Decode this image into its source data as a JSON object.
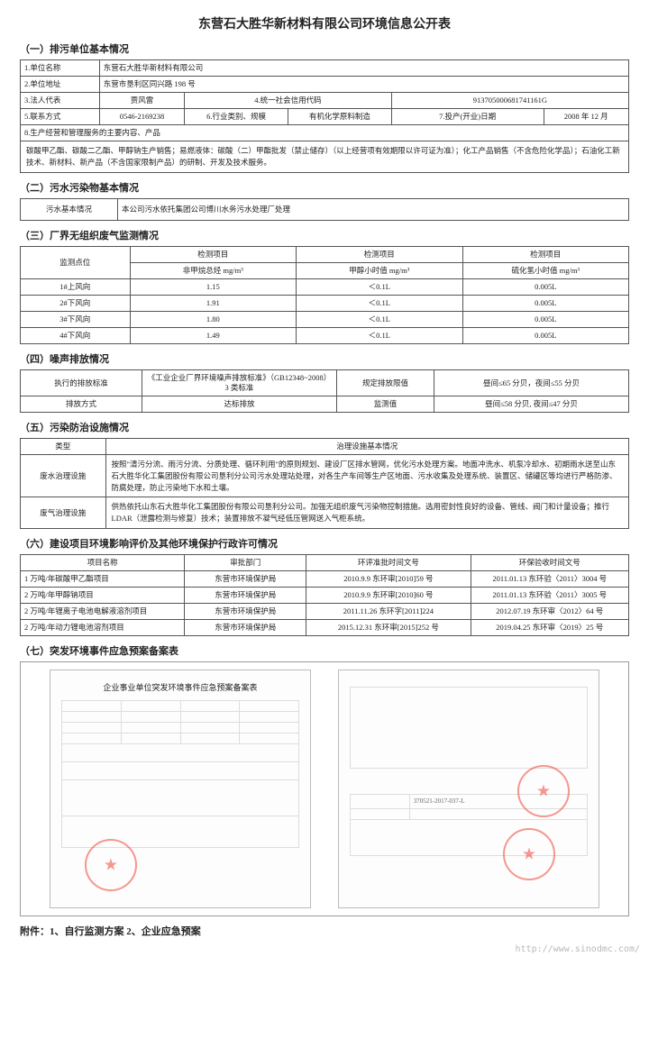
{
  "doc_title": "东营石大胜华新材料有限公司环境信息公开表",
  "s1": {
    "title": "（一）排污单位基本情况",
    "rows": {
      "l1": "1.单位名称",
      "v1": "东营石大胜华新材料有限公司",
      "l2": "2.单位地址",
      "v2": "东营市垦利区同兴路 198 号",
      "l3": "3.法人代表",
      "v3": "贾风雷",
      "l4": "4.统一社会信用代码",
      "v4": "913705000681741161G",
      "l5": "5.联系方式",
      "v5": "0546-2169238",
      "l6": "6.行业类别、规模",
      "v6": "有机化学原料制造",
      "l7": "7.投产(开业)日期",
      "v7": "2008 年 12 月",
      "l8": "8.生产经营和管理服务的主要内容、产品",
      "note": "碳酸甲乙酯、碳酸二乙酯、甲醇钠生产销售；易燃液体：碳酸（二）甲酯批发（禁止储存）（以上经营项有效期限以许可证为准）；化工产品销售（不含危险化学品）；石油化工新技术、新材料、新产品（不含国家限制产品）的研制、开发及技术服务。"
    }
  },
  "s2": {
    "title": "（二）污水污染物基本情况",
    "l": "污水基本情况",
    "v": "本公司污水依托集团公司博川水务污水处理厂处理"
  },
  "s3": {
    "title": "（三）厂界无组织废气监测情况",
    "h_point": "监测点位",
    "h_item": "检测项目",
    "u1": "非甲烷总烃 mg/m³",
    "u2": "甲醇小时值 mg/m³",
    "u3": "硫化氢小时值 mg/m³",
    "rows": [
      {
        "p": "1#上风向",
        "a": "1.15",
        "b": "＜0.1L",
        "c": "0.005L"
      },
      {
        "p": "2#下风向",
        "a": "1.91",
        "b": "＜0.1L",
        "c": "0.005L"
      },
      {
        "p": "3#下风向",
        "a": "1.80",
        "b": "＜0.1L",
        "c": "0.005L"
      },
      {
        "p": "4#下风向",
        "a": "1.49",
        "b": "＜0.1L",
        "c": "0.005L"
      }
    ]
  },
  "s4": {
    "title": "（四）噪声排放情况",
    "l1": "执行的排放标准",
    "v1": "《工业企业厂界环境噪声排放标准》（GB12348~2008）3 类标准",
    "l2": "规定排放限值",
    "v2": "昼间≤65 分贝，夜间≤55 分贝",
    "l3": "排放方式",
    "v3": "达标排放",
    "l4": "监测值",
    "v4": "昼间≤58 分贝, 夜间≤47 分贝"
  },
  "s5": {
    "title": "（五）污染防治设施情况",
    "hl": "类型",
    "hr": "治理设施基本情况",
    "r1l": "废水治理设施",
    "r1r": "按照\"清污分流、雨污分流、分质处理、循环利用\"的原则规划、建设厂区排水管网，优化污水处理方案。地面冲洗水、机泵冷却水、初期雨水送至山东石大胜华化工集团股份有限公司垦利分公司污水处理站处理，对各生产车间等生产区地面、污水收集及处理系统、装置区、储罐区等均进行严格防渗、防腐处理，防止污染地下水和土壤。",
    "r2l": "废气治理设施",
    "r2r": "供热依托山东石大胜华化工集团股份有限公司垦利分公司。加强无组织废气污染物控制措施。选用密封性良好的设备、管线、阀门和计量设备；推行 LDAR（泄露检测与修复）技术；装置排放不凝气经低压管网送入气柜系统。"
  },
  "s6": {
    "title": "（六）建设项目环境影响评价及其他环境保护行政许可情况",
    "h1": "项目名称",
    "h2": "审批部门",
    "h3": "环评准批时间文号",
    "h4": "环保验收时间文号",
    "rows": [
      {
        "a": "1 万吨/年碳酸甲乙酯项目",
        "b": "东营市环境保护局",
        "c": "2010.9.9 东环审[2010]59 号",
        "d": "2011.01.13 东环验〈2011〉3004 号"
      },
      {
        "a": "2 万吨/年甲醇钠项目",
        "b": "东营市环境保护局",
        "c": "2010.9.9 东环审[2010]60 号",
        "d": "2011.01.13 东环验〈2011〉3005 号"
      },
      {
        "a": "2 万吨/年锂离子电池电解液溶剂项目",
        "b": "东营市环境保护局",
        "c": "2011.11.26 东环字[2011]224",
        "d": "2012.07.19 东环审〈2012〉64 号"
      },
      {
        "a": "2 万吨/年动力锂电池溶剂项目",
        "b": "东营市环境保护局",
        "c": "2015.12.31 东环审[2015]252 号",
        "d": "2019.04.25 东环审〈2019〉25 号"
      }
    ]
  },
  "s7": {
    "title": "（七）突发环境事件应急预案备案表",
    "mock_title_left": "企业事业单位突发环境事件应急预案备案表",
    "mock_title_right": "",
    "stamp_num": "370521-2017-037-L"
  },
  "attach": "附件：1、自行监测方案 2、企业应急预案",
  "footer_url": "http://www.sinodmc.com/"
}
